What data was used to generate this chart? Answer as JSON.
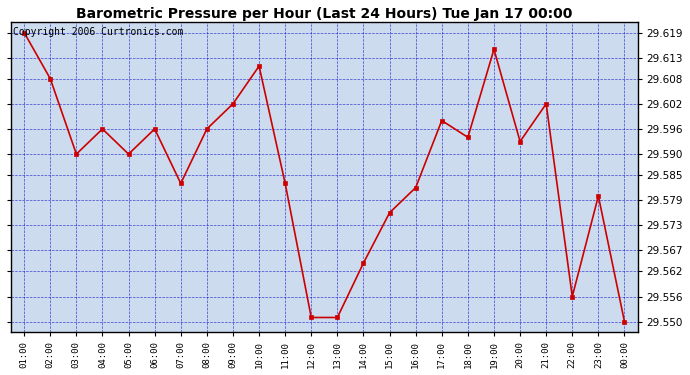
{
  "title": "Barometric Pressure per Hour (Last 24 Hours) Tue Jan 17 00:00",
  "copyright": "Copyright 2006 Curtronics.com",
  "x_labels": [
    "01:00",
    "02:00",
    "03:00",
    "04:00",
    "05:00",
    "06:00",
    "07:00",
    "08:00",
    "09:00",
    "10:00",
    "11:00",
    "12:00",
    "13:00",
    "14:00",
    "15:00",
    "16:00",
    "17:00",
    "18:00",
    "19:00",
    "20:00",
    "21:00",
    "22:00",
    "23:00",
    "00:00"
  ],
  "y_values": [
    29.619,
    29.608,
    29.59,
    29.596,
    29.59,
    29.596,
    29.583,
    29.596,
    29.602,
    29.611,
    29.583,
    29.551,
    29.551,
    29.564,
    29.576,
    29.582,
    29.598,
    29.594,
    29.615,
    29.593,
    29.602,
    29.556,
    29.58,
    29.55
  ],
  "ylim_min": 29.5475,
  "ylim_max": 29.6215,
  "yticks": [
    29.55,
    29.556,
    29.562,
    29.567,
    29.573,
    29.579,
    29.585,
    29.59,
    29.596,
    29.602,
    29.608,
    29.613,
    29.619
  ],
  "line_color": "#cc0000",
  "marker_color": "#cc0000",
  "bg_color": "#ffffff",
  "plot_bg_color": "#ccdcee",
  "grid_color": "#0000cc",
  "title_fontsize": 10,
  "copyright_fontsize": 7,
  "tick_fontsize": 7.5,
  "xtick_fontsize": 6.5
}
